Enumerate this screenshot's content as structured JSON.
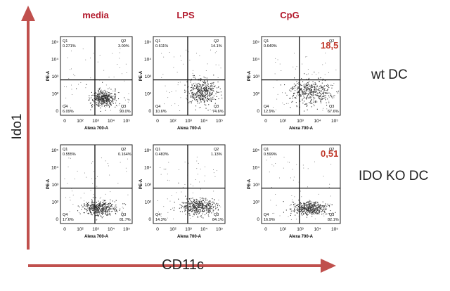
{
  "axes": {
    "x_label": "CD11c",
    "y_label": "Ido1"
  },
  "columns": [
    "media",
    "LPS",
    "CpG"
  ],
  "rows": [
    "wt DC",
    "IDO KO DC"
  ],
  "plot_axis_text": {
    "x_title": "Alexa 700-A",
    "y_title": "PE-A",
    "x_ticks": [
      "0",
      "10²",
      "10³",
      "10⁴",
      "10⁵"
    ],
    "y_ticks": [
      "0",
      "10²",
      "10³",
      "10⁴",
      "10⁵"
    ]
  },
  "highlights": {
    "wt_cpg": "18,5",
    "ko_cpg": "0,51"
  },
  "colors": {
    "arrow": "#c0504d",
    "heading": "#b2182b",
    "highlight": "#c0392b"
  },
  "panels": [
    {
      "id": "wt-media",
      "q1": "0.271%",
      "q2": "3.00%",
      "q3": "90.0%",
      "q4": "6.09%"
    },
    {
      "id": "wt-lps",
      "q1": "0.611%",
      "q2": "14.1%",
      "q3": "74.6%",
      "q4": "10.6%"
    },
    {
      "id": "wt-cpg",
      "q1": "0.649%",
      "q2": "18,5",
      "q3": "67.6%",
      "q4": "12.9%"
    },
    {
      "id": "ko-media",
      "q1": "0.555%",
      "q2": "0.164%",
      "q3": "81.7%",
      "q4": "17.6%"
    },
    {
      "id": "ko-lps",
      "q1": "0.483%",
      "q2": "1.13%",
      "q3": "84.1%",
      "q4": "14.3%"
    },
    {
      "id": "ko-cpg",
      "q1": "0.599%",
      "q2": "0,51",
      "q3": "82.1%",
      "q4": "16.9%"
    }
  ]
}
